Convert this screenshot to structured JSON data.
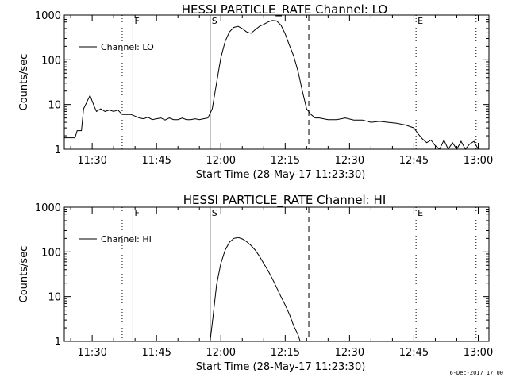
{
  "footer": {
    "timestamp": "6-Dec-2017 17:00"
  },
  "chart_data": [
    {
      "type": "line",
      "title": "HESSI PARTICLE_RATE Channel: LO",
      "xlabel": "Start Time (28-May-17 11:23:30)",
      "ylabel": "Counts/sec",
      "y_scale": "log",
      "ylim": [
        1,
        1000
      ],
      "xlim_minutes_after_start": [
        0,
        99
      ],
      "x_ticks": [
        "11:30",
        "11:45",
        "12:00",
        "12:15",
        "12:30",
        "12:45",
        "13:00"
      ],
      "y_ticks": [
        "1",
        "10",
        "100",
        "1000"
      ],
      "legend": {
        "label": "Channel: LO",
        "position": "top-left"
      },
      "markers": [
        {
          "time": "11:37:00",
          "style": "dotted",
          "label": ""
        },
        {
          "time": "11:39:30",
          "style": "solid",
          "label": "F"
        },
        {
          "time": "11:57:30",
          "style": "solid",
          "label": "S"
        },
        {
          "time": "12:20:30",
          "style": "dashed",
          "label": ""
        },
        {
          "time": "12:45:30",
          "style": "dotted",
          "label": "E"
        },
        {
          "time": "12:59:30",
          "style": "dotted",
          "label": ""
        }
      ],
      "series": [
        {
          "name": "Channel: LO",
          "x": [
            "11:23:30",
            "11:26:00",
            "11:26:30",
            "11:27:30",
            "11:28:00",
            "11:29:30",
            "11:30:30",
            "11:31:00",
            "11:32:00",
            "11:33:00",
            "11:34:00",
            "11:35:00",
            "11:36:00",
            "11:37:00",
            "11:38:00",
            "11:39:00",
            "11:40:00",
            "11:41:00",
            "11:42:00",
            "11:43:00",
            "11:44:00",
            "11:45:00",
            "11:46:00",
            "11:47:00",
            "11:48:00",
            "11:49:00",
            "11:50:00",
            "11:51:00",
            "11:52:00",
            "11:53:00",
            "11:54:00",
            "11:55:00",
            "11:56:00",
            "11:57:00",
            "11:58:00",
            "11:59:00",
            "12:00:00",
            "12:01:00",
            "12:02:00",
            "12:03:00",
            "12:04:00",
            "12:05:00",
            "12:06:00",
            "12:07:00",
            "12:08:00",
            "12:09:00",
            "12:10:00",
            "12:11:00",
            "12:12:00",
            "12:13:00",
            "12:14:00",
            "12:15:00",
            "12:16:00",
            "12:17:00",
            "12:18:00",
            "12:19:00",
            "12:20:00",
            "12:21:00",
            "12:22:00",
            "12:23:00",
            "12:25:00",
            "12:27:00",
            "12:29:00",
            "12:31:00",
            "12:33:00",
            "12:35:00",
            "12:37:00",
            "12:39:00",
            "12:41:00",
            "12:43:00",
            "12:45:00",
            "12:46:00",
            "12:47:00",
            "12:48:00",
            "12:49:00",
            "12:50:00",
            "12:51:00",
            "12:52:00",
            "12:53:00",
            "12:54:00",
            "12:55:00",
            "12:56:00",
            "12:57:00",
            "12:58:00",
            "12:59:00",
            "13:00:00"
          ],
          "y": [
            1.8,
            1.8,
            2.6,
            2.6,
            8,
            16,
            9,
            7,
            8,
            7,
            7.5,
            7,
            7.5,
            6,
            6,
            6,
            5.5,
            5,
            4.8,
            5.2,
            4.6,
            4.8,
            5,
            4.5,
            5,
            4.6,
            4.6,
            5,
            4.6,
            4.6,
            4.8,
            4.6,
            4.8,
            5,
            8,
            30,
            110,
            260,
            420,
            530,
            560,
            500,
            420,
            390,
            470,
            560,
            620,
            700,
            760,
            740,
            600,
            380,
            210,
            120,
            55,
            20,
            8,
            6,
            5,
            5,
            4.6,
            4.6,
            5,
            4.5,
            4.5,
            4,
            4.2,
            4,
            3.8,
            3.5,
            3,
            2.2,
            1.7,
            1.4,
            1.6,
            1.2,
            1,
            1.6,
            1,
            1.4,
            1,
            1.5,
            1,
            1.3,
            1.5,
            1
          ]
        }
      ]
    },
    {
      "type": "line",
      "title": "HESSI PARTICLE_RATE Channel: HI",
      "xlabel": "Start Time (28-May-17 11:23:30)",
      "ylabel": "Counts/sec",
      "y_scale": "log",
      "ylim": [
        1,
        1000
      ],
      "xlim_minutes_after_start": [
        0,
        99
      ],
      "x_ticks": [
        "11:30",
        "11:45",
        "12:00",
        "12:15",
        "12:30",
        "12:45",
        "13:00"
      ],
      "y_ticks": [
        "1",
        "10",
        "100",
        "1000"
      ],
      "legend": {
        "label": "Channel: HI",
        "position": "top-left"
      },
      "markers": [
        {
          "time": "11:37:00",
          "style": "dotted",
          "label": ""
        },
        {
          "time": "11:39:30",
          "style": "solid",
          "label": "F"
        },
        {
          "time": "11:57:30",
          "style": "solid",
          "label": "S"
        },
        {
          "time": "12:20:30",
          "style": "dashed",
          "label": ""
        },
        {
          "time": "12:45:30",
          "style": "dotted",
          "label": "E"
        },
        {
          "time": "12:59:30",
          "style": "dotted",
          "label": ""
        }
      ],
      "series": [
        {
          "name": "Channel: HI",
          "x": [
            "11:57:30",
            "11:58:00",
            "11:59:00",
            "12:00:00",
            "12:01:00",
            "12:02:00",
            "12:03:00",
            "12:04:00",
            "12:05:00",
            "12:06:00",
            "12:07:00",
            "12:08:00",
            "12:09:00",
            "12:10:00",
            "12:11:00",
            "12:12:00",
            "12:13:00",
            "12:14:00",
            "12:15:00",
            "12:16:00",
            "12:17:00",
            "12:18:00",
            "12:18:30"
          ],
          "y": [
            1,
            2.5,
            18,
            55,
            110,
            165,
            200,
            210,
            195,
            170,
            140,
            110,
            80,
            55,
            38,
            25,
            16,
            10,
            6.5,
            4,
            2.2,
            1.4,
            1
          ]
        }
      ]
    }
  ]
}
